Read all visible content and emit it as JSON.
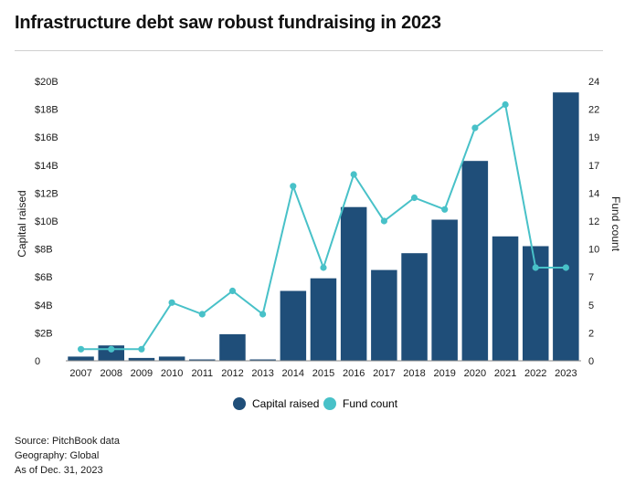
{
  "title": "Infrastructure debt saw robust fundraising in 2023",
  "footer": {
    "source": "Source: PitchBook data",
    "geography": "Geography: Global",
    "as_of": "As of Dec. 31, 2023"
  },
  "colors": {
    "bar": "#1f4e79",
    "line": "#48c1c8",
    "axis_text": "#1a1a1a"
  },
  "chart_data": {
    "type": "bar",
    "categories": [
      "2007",
      "2008",
      "2009",
      "2010",
      "2011",
      "2012",
      "2013",
      "2014",
      "2015",
      "2016",
      "2017",
      "2018",
      "2019",
      "2020",
      "2021",
      "2022",
      "2023"
    ],
    "series": [
      {
        "name": "Capital raised",
        "type": "bar",
        "axis": "left",
        "values": [
          0.3,
          1.1,
          0.2,
          0.3,
          0.1,
          1.9,
          0.1,
          5.0,
          5.9,
          11.0,
          6.5,
          7.7,
          10.1,
          14.3,
          8.9,
          8.2,
          19.2
        ]
      },
      {
        "name": "Fund count",
        "type": "line",
        "axis": "right",
        "values": [
          1,
          1,
          1,
          5,
          4,
          6,
          4,
          15,
          8,
          16,
          12,
          14,
          13,
          20,
          22,
          8,
          8
        ]
      }
    ],
    "ylabel": "Capital raised",
    "y2label": "Fund count",
    "ylim": [
      0,
      20
    ],
    "y2lim": [
      0,
      24
    ],
    "yticks": [
      "0",
      "$2B",
      "$4B",
      "$6B",
      "$8B",
      "$10B",
      "$12B",
      "$14B",
      "$16B",
      "$18B",
      "$20B"
    ],
    "y2ticks": [
      "0",
      "2",
      "5",
      "7",
      "10",
      "12",
      "14",
      "17",
      "19",
      "22",
      "24"
    ],
    "grid": false,
    "legend": {
      "position": "bottom",
      "entries": [
        "Capital raised",
        "Fund count"
      ]
    }
  }
}
